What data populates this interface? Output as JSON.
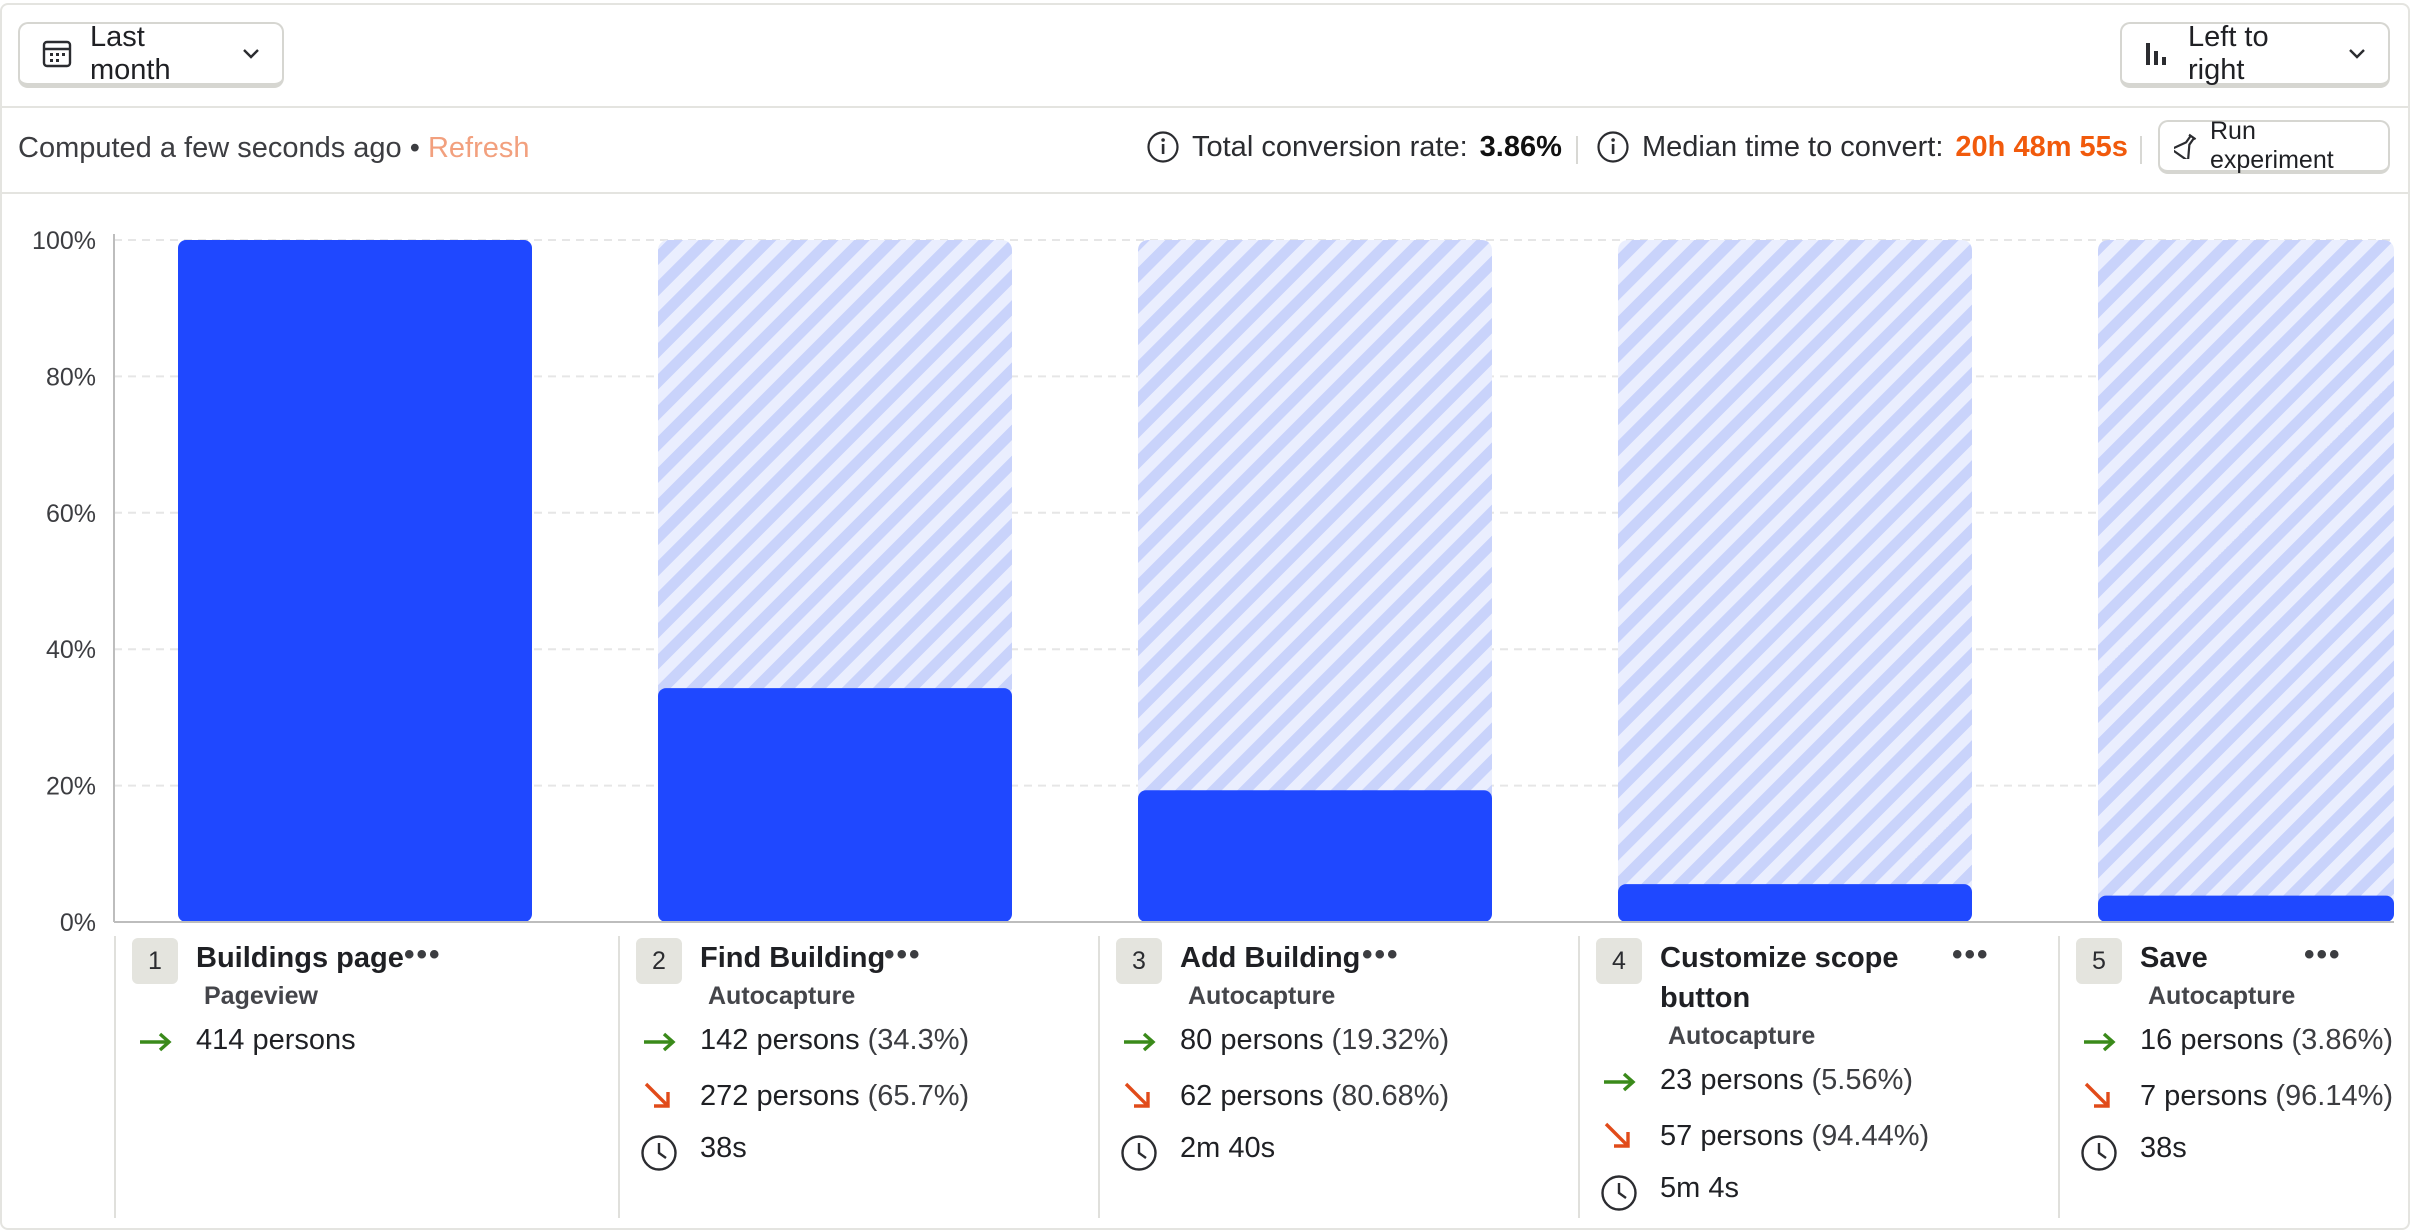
{
  "toolbar": {
    "date_label": "Last month",
    "layout_label": "Left to right"
  },
  "infobar": {
    "computed_text": "Computed a few seconds ago •",
    "refresh_label": "Refresh",
    "conversion_label": "Total conversion rate:",
    "conversion_value": "3.86%",
    "median_label": "Median time to convert:",
    "median_value": "20h 48m 55s",
    "run_experiment_label": "Run experiment"
  },
  "colors": {
    "bar": "#1f48ff",
    "bar_dropoff_stripe": "#c6d0fb",
    "positive_arrow": "#3a8a1a",
    "negative_arrow": "#e14b1a",
    "median_value": "#f15a0c",
    "refresh": "#f2a07e"
  },
  "chart_data": {
    "type": "bar",
    "categories": [
      "Buildings page",
      "Find Building",
      "Add Building",
      "Customize scope button",
      "Save"
    ],
    "values": [
      100,
      34.3,
      19.32,
      5.56,
      3.86
    ],
    "ylim": [
      0,
      100
    ],
    "yticks": [
      "100%",
      "80%",
      "60%",
      "40%",
      "20%",
      "0%"
    ],
    "grid": true
  },
  "steps": [
    {
      "number": "1",
      "name": "Buildings page",
      "type": "Pageview",
      "converted": "414 persons",
      "converted_pct": "",
      "dropped": "",
      "dropped_pct": "",
      "time": ""
    },
    {
      "number": "2",
      "name": "Find Building",
      "type": "Autocapture",
      "converted": "142 persons",
      "converted_pct": "(34.3%)",
      "dropped": "272 persons",
      "dropped_pct": "(65.7%)",
      "time": "38s"
    },
    {
      "number": "3",
      "name": "Add Building",
      "type": "Autocapture",
      "converted": "80 persons",
      "converted_pct": "(19.32%)",
      "dropped": "62 persons",
      "dropped_pct": "(80.68%)",
      "time": "2m 40s"
    },
    {
      "number": "4",
      "name_line1": "Customize scope",
      "name_line2": "button",
      "type": "Autocapture",
      "converted": "23 persons",
      "converted_pct": "(5.56%)",
      "dropped": "57 persons",
      "dropped_pct": "(94.44%)",
      "time": "5m 4s"
    },
    {
      "number": "5",
      "name": "Save",
      "type": "Autocapture",
      "converted": "16 persons",
      "converted_pct": "(3.86%)",
      "dropped": "7 persons",
      "dropped_pct": "(96.14%)",
      "time": "38s"
    }
  ]
}
